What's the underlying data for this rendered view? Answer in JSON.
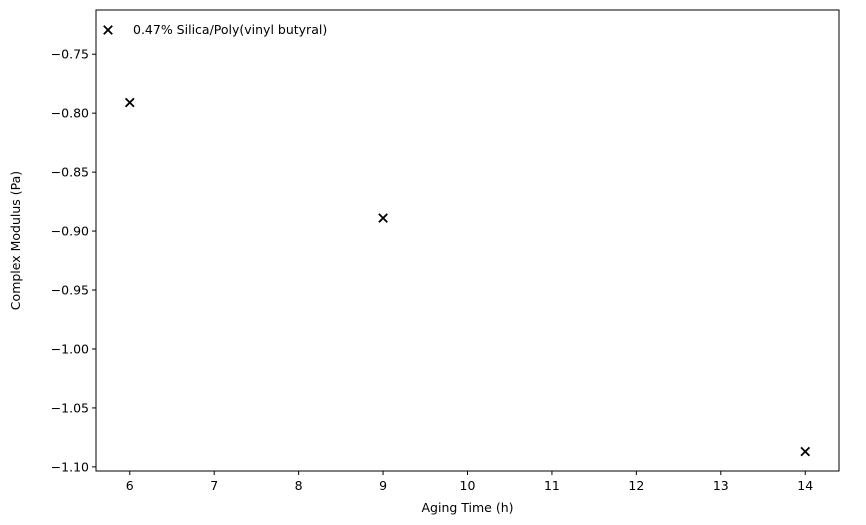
{
  "chart_data": {
    "type": "scatter",
    "xlabel": "Aging Time (h)",
    "ylabel": "Complex Modulus (Pa)",
    "xlim": [
      5.6,
      14.4
    ],
    "ylim": [
      -1.1035,
      -0.7125
    ],
    "xticks": [
      6,
      7,
      8,
      9,
      10,
      11,
      12,
      13,
      14
    ],
    "xtick_labels": [
      "6",
      "7",
      "8",
      "9",
      "10",
      "11",
      "12",
      "13",
      "14"
    ],
    "yticks": [
      -0.75,
      -0.8,
      -0.85,
      -0.9,
      -0.95,
      -1.0,
      -1.05,
      -1.1
    ],
    "ytick_labels": [
      "−0.75",
      "−0.80",
      "−0.85",
      "−0.90",
      "−0.95",
      "−1.00",
      "−1.05",
      "−1.10"
    ],
    "grid": false,
    "legend_position": "top-left",
    "series": [
      {
        "name": "0.47% Silica/Poly(vinyl butyral)",
        "marker": "x",
        "color": "#000000",
        "x": [
          6,
          9,
          14
        ],
        "y": [
          -0.791,
          -0.889,
          -1.087
        ]
      }
    ]
  }
}
